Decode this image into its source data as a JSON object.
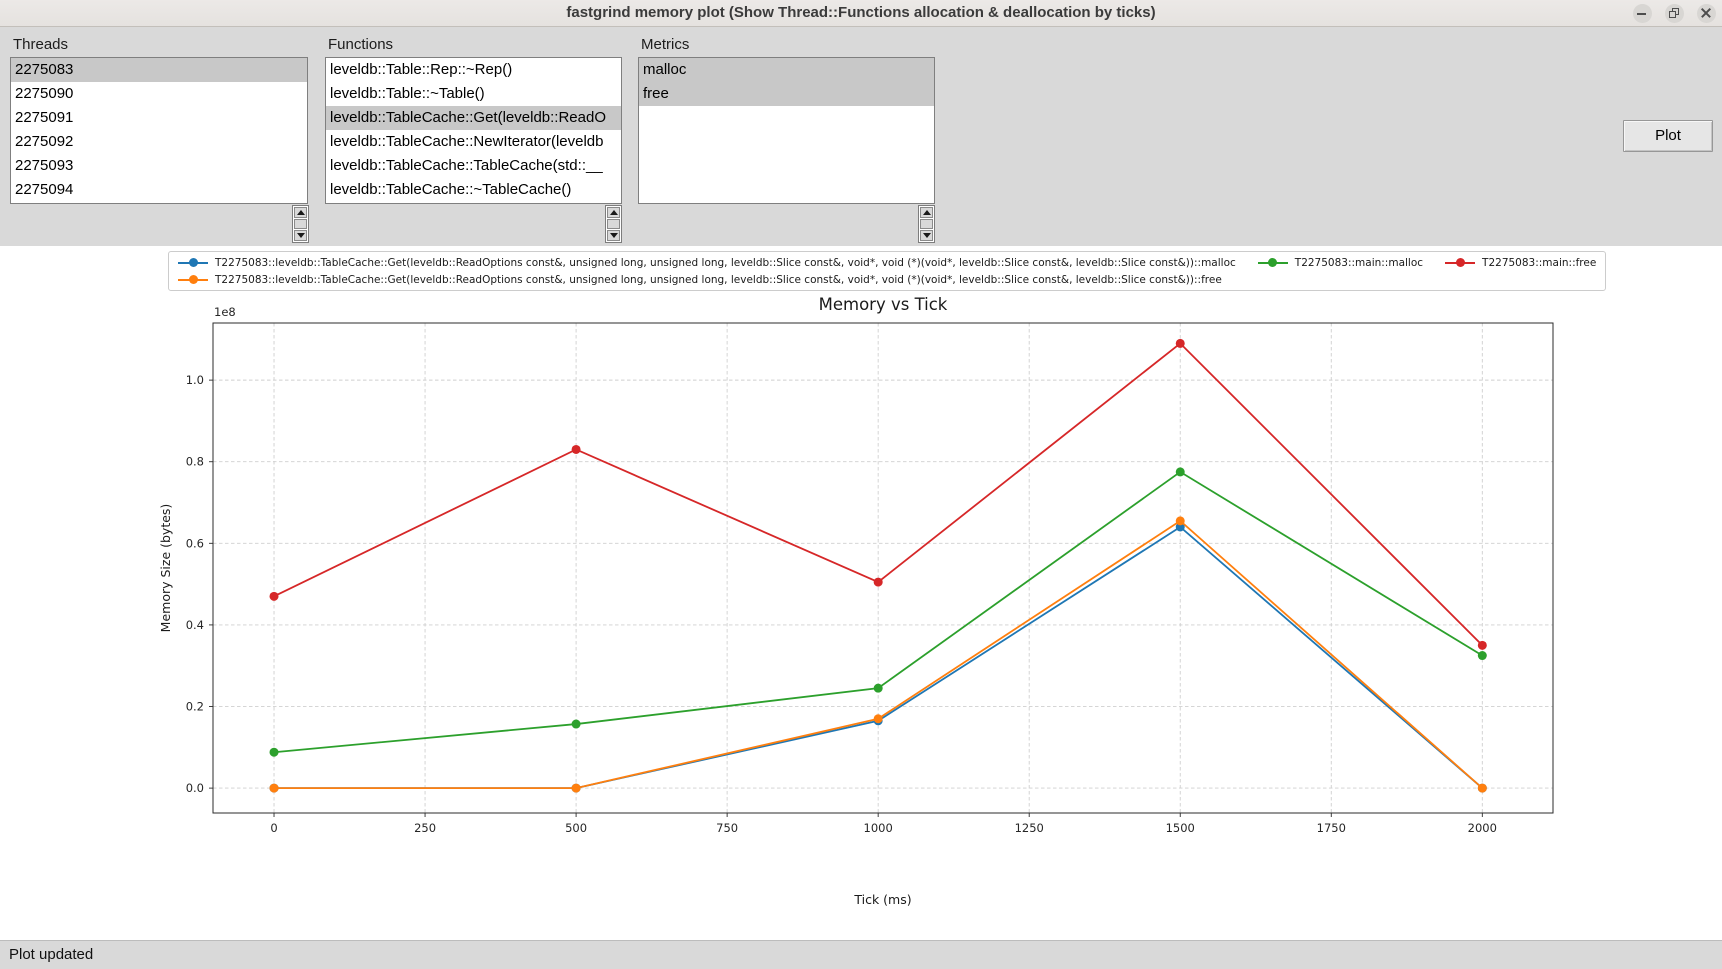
{
  "window": {
    "title": "fastgrind memory plot (Show Thread::Functions allocation & deallocation by ticks)"
  },
  "lists": {
    "threads": {
      "label": "Threads",
      "items": [
        "2275083",
        "2275090",
        "2275091",
        "2275092",
        "2275093",
        "2275094"
      ],
      "selected": [
        0
      ]
    },
    "functions": {
      "label": "Functions",
      "items": [
        "leveldb::Table::Rep::~Rep()",
        "leveldb::Table::~Table()",
        "leveldb::TableCache::Get(leveldb::ReadO",
        "leveldb::TableCache::NewIterator(leveldb",
        "leveldb::TableCache::TableCache(std::__",
        "leveldb::TableCache::~TableCache()"
      ],
      "selected": [
        2
      ]
    },
    "metrics": {
      "label": "Metrics",
      "items": [
        "malloc",
        "free"
      ],
      "selected": [
        0,
        1
      ]
    }
  },
  "toolbar": {
    "plot_label": "Plot"
  },
  "status": {
    "text": "Plot updated"
  },
  "chart_data": {
    "type": "line",
    "title": "Memory vs Tick",
    "xlabel": "Tick (ms)",
    "ylabel": "Memory Size (bytes)",
    "y_offset_label": "1e8",
    "grid": true,
    "legend_position": "top",
    "xlim": [
      -101,
      2117
    ],
    "ylim": [
      -6100000,
      114000000
    ],
    "xticks": [
      0,
      250,
      500,
      750,
      1000,
      1250,
      1500,
      1750,
      2000
    ],
    "yticks": [
      0,
      20000000,
      40000000,
      60000000,
      80000000,
      100000000
    ],
    "ytick_labels": [
      "0.0",
      "0.2",
      "0.4",
      "0.6",
      "0.8",
      "1.0"
    ],
    "x": [
      0,
      500,
      1000,
      1500,
      2000
    ],
    "series": [
      {
        "name": "T2275083::leveldb::TableCache::Get(leveldb::ReadOptions const&, unsigned long, unsigned long, leveldb::Slice const&, void*, void (*)(void*, leveldb::Slice const&, leveldb::Slice const&))::malloc",
        "color": "#1f77b4",
        "values": [
          0,
          0,
          16500000,
          64000000,
          0
        ]
      },
      {
        "name": "T2275083::leveldb::TableCache::Get(leveldb::ReadOptions const&, unsigned long, unsigned long, leveldb::Slice const&, void*, void (*)(void*, leveldb::Slice const&, leveldb::Slice const&))::free",
        "color": "#ff7f0e",
        "values": [
          0,
          0,
          17000000,
          65500000,
          0
        ]
      },
      {
        "name": "T2275083::main::malloc",
        "color": "#2ca02c",
        "values": [
          8800000,
          15700000,
          24500000,
          77500000,
          32500000
        ]
      },
      {
        "name": "T2275083::main::free",
        "color": "#d62728",
        "values": [
          47000000,
          83000000,
          50500000,
          109000000,
          35000000
        ]
      }
    ]
  }
}
